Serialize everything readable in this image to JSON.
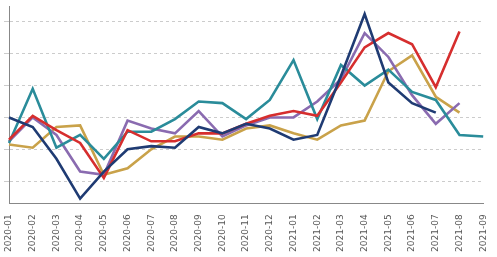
{
  "chart_data": {
    "type": "line",
    "categories": [
      "2020-01",
      "2020-02",
      "2020-03",
      "2020-04",
      "2020-05",
      "2020-06",
      "2020-07",
      "2020-08",
      "2020-09",
      "2020-10",
      "2020-11",
      "2020-12",
      "2021-01",
      "2021-02",
      "2021-03",
      "2021-04",
      "2021-05",
      "2021-06",
      "2021-07",
      "2021-08",
      "2021-09"
    ],
    "series": [
      {
        "color": "#1f3b73",
        "values": [
          0,
          -0.3,
          -1.3,
          -2.55,
          -1.7,
          -1.0,
          -0.9,
          -0.95,
          -0.3,
          -0.5,
          -0.2,
          -0.35,
          -0.7,
          -0.55,
          1.3,
          3.25,
          1.1,
          0.45,
          0.15,
          null,
          null
        ]
      },
      {
        "color": "#d62e2e",
        "values": [
          -0.7,
          0.05,
          -0.4,
          -0.8,
          -1.9,
          -0.4,
          -0.75,
          -0.75,
          -0.5,
          -0.5,
          -0.2,
          0.05,
          0.2,
          0.05,
          1.1,
          2.2,
          2.65,
          2.3,
          0.95,
          2.7,
          null
        ]
      },
      {
        "color": "#2a8c9a",
        "values": [
          -0.8,
          0.9,
          -0.95,
          -0.55,
          -1.3,
          -0.45,
          -0.45,
          -0.05,
          0.5,
          0.45,
          -0.05,
          0.55,
          1.8,
          -0.05,
          1.65,
          1.0,
          1.5,
          0.8,
          0.55,
          -0.55,
          -0.6
        ]
      },
      {
        "color": "#8a6bb0",
        "values": [
          -0.75,
          0,
          -0.55,
          -1.7,
          -1.8,
          -0.1,
          -0.35,
          -0.5,
          0.2,
          -0.6,
          -0.25,
          0,
          0,
          0.5,
          1.2,
          2.65,
          1.9,
          0.7,
          -0.2,
          0.45,
          null
        ]
      },
      {
        "color": "#c9a24a",
        "values": [
          -0.85,
          -0.95,
          -0.3,
          -0.25,
          -1.8,
          -1.6,
          -1.0,
          -0.6,
          -0.6,
          -0.7,
          -0.35,
          -0.25,
          -0.5,
          -0.7,
          -0.25,
          -0.1,
          1.45,
          1.95,
          0.65,
          0.15,
          null
        ]
      }
    ],
    "ylim": [
      -2.7,
      3.5
    ],
    "yticks": [
      -2,
      -1,
      0,
      1,
      2,
      3
    ],
    "grid": true,
    "tick_labels": "x"
  }
}
